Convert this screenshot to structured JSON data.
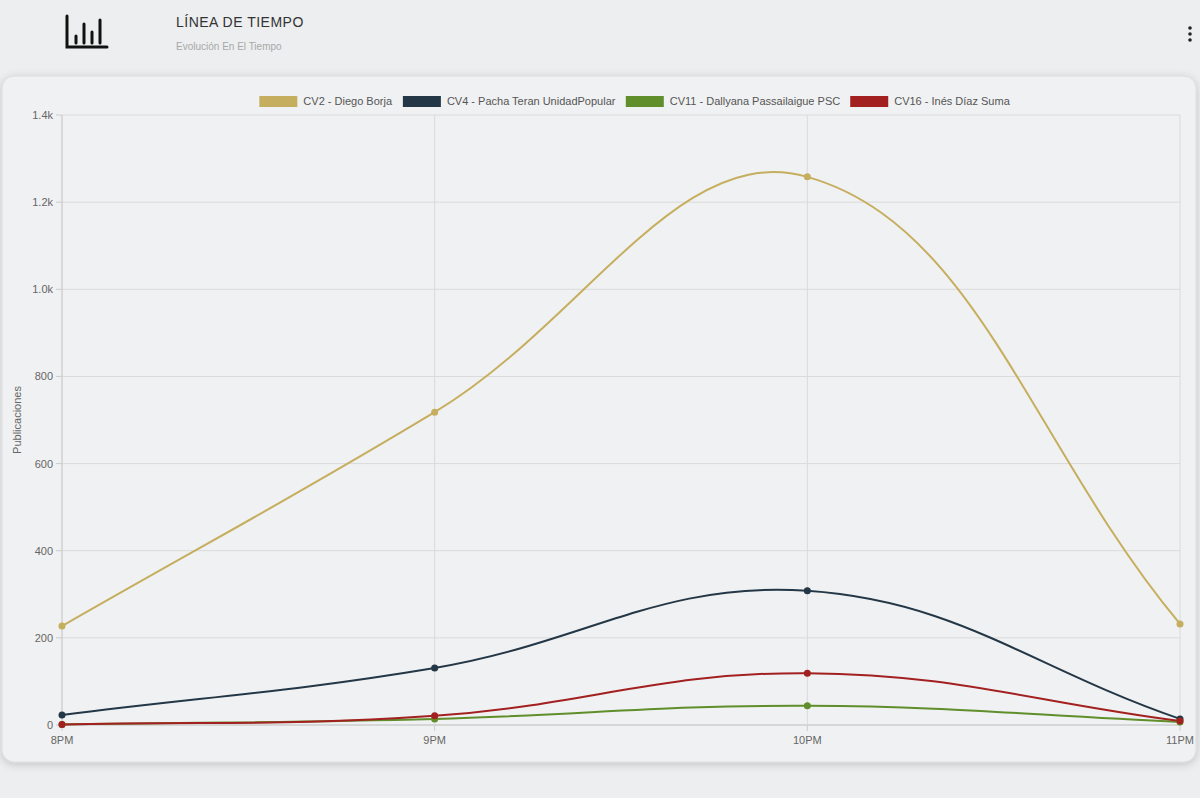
{
  "chart_data": {
    "type": "line",
    "title": "LÍNEA DE TIEMPO",
    "subtitle": "Evolución En El Tiempo",
    "ylabel": "Publicaciones",
    "categories": [
      "8PM",
      "9PM",
      "10PM",
      "11PM"
    ],
    "series": [
      {
        "name": "CV2 - Diego Borja",
        "color": "#c6ae5f",
        "values": [
          227,
          718,
          1258,
          232
        ]
      },
      {
        "name": "CV4 - Pacha Teran UnidadPopular",
        "color": "#243746",
        "values": [
          23,
          131,
          308,
          14
        ]
      },
      {
        "name": "CV11 - Dallyana Passailaigue PSC",
        "color": "#5f8e2a",
        "values": [
          1,
          14,
          44,
          7
        ]
      },
      {
        "name": "CV16 - Inés Díaz Suma",
        "color": "#a32020",
        "values": [
          1,
          21,
          119,
          9
        ]
      }
    ],
    "ylim": [
      0,
      1400
    ],
    "yticks": [
      0,
      200,
      400,
      600,
      800,
      {
        "value": 1000,
        "label": "1.0k"
      },
      {
        "value": 1200,
        "label": "1.2k"
      },
      {
        "value": 1400,
        "label": "1.4k"
      }
    ],
    "grid": true,
    "legend": "top",
    "marker": "circle"
  }
}
